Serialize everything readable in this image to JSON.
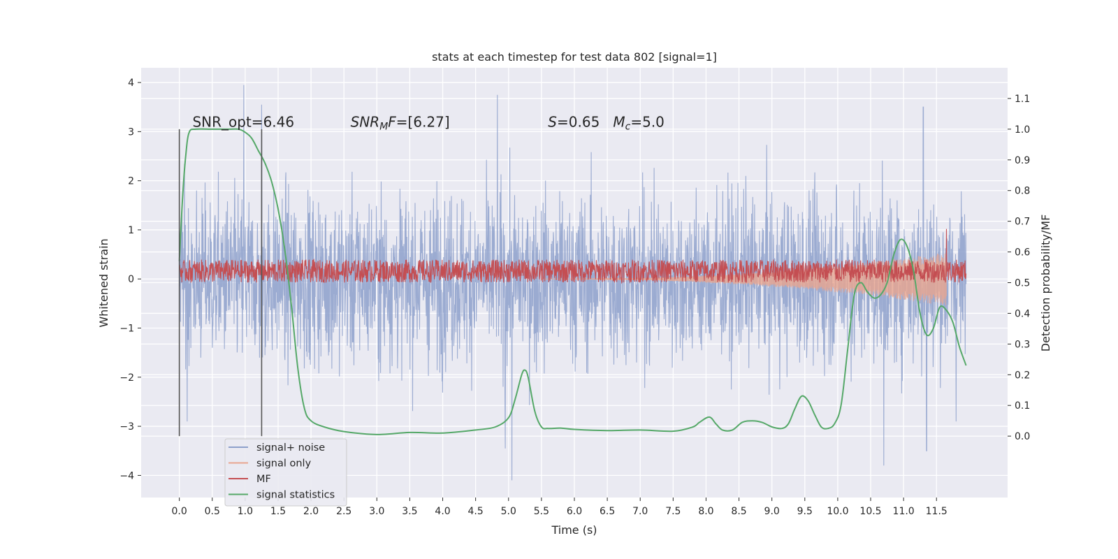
{
  "chart_data": {
    "type": "line",
    "title": "stats at each timestep for test data 802 [signal=1]",
    "xlabel": "Time (s)",
    "ylabel": "Whitened strain",
    "ylabel_right": "Detection probability/MF",
    "xlim": [
      -0.58,
      12.58
    ],
    "ylim": [
      -4.45,
      4.3
    ],
    "ylim_right": [
      -0.2,
      1.2
    ],
    "xticks": [
      0.0,
      0.5,
      1.0,
      1.5,
      2.0,
      2.5,
      3.0,
      3.5,
      4.0,
      4.5,
      5.0,
      5.5,
      6.0,
      6.5,
      7.0,
      7.5,
      8.0,
      8.5,
      9.0,
      9.5,
      10.0,
      10.5,
      11.0,
      11.5
    ],
    "xtick_labels": [
      "0.0",
      "0.5",
      "1.0",
      "1.5",
      "2.0",
      "2.5",
      "3.0",
      "3.5",
      "4.0",
      "4.5",
      "5.0",
      "5.5",
      "6.0",
      "6.5",
      "7.0",
      "7.5",
      "8.0",
      "8.5",
      "9.0",
      "9.5",
      "10.0",
      "10.5",
      "11.0",
      "11.5"
    ],
    "yticks": [
      -4,
      -3,
      -2,
      -1,
      0,
      1,
      2,
      3,
      4
    ],
    "ytick_labels": [
      "−4",
      "−3",
      "−2",
      "−1",
      "0",
      "1",
      "2",
      "3",
      "4"
    ],
    "yticks_right": [
      0.0,
      0.1,
      0.2,
      0.3,
      0.4,
      0.5,
      0.6,
      0.7,
      0.8,
      0.9,
      1.0,
      1.1
    ],
    "ytick_labels_right": [
      "0.0",
      "0.1",
      "0.2",
      "0.3",
      "0.4",
      "0.5",
      "0.6",
      "0.7",
      "0.8",
      "0.9",
      "1.0",
      "1.1"
    ],
    "grid": true,
    "legend_position": "lower-left",
    "vlines": [
      0.0,
      1.25
    ],
    "vline_range": [
      -3.2,
      3.05
    ],
    "annotations": [
      {
        "text": "SNR_opt=6.46",
        "x": 0.2,
        "y": 3.1
      },
      {
        "text": "SNR_MF=[6.27]",
        "x": 2.6,
        "y": 3.1
      },
      {
        "text": "S=0.65   M_c=5.0",
        "x": 5.6,
        "y": 3.1
      }
    ],
    "series": [
      {
        "name": "signal+ noise",
        "color": "#8da0cb",
        "axis": "left",
        "x_range": [
          0.0,
          11.95
        ],
        "envelope_mean_abs": 1.2,
        "notable_peaks": [
          {
            "x": 0.98,
            "y": 3.95
          },
          {
            "x": 1.25,
            "y": 3.55
          },
          {
            "x": 4.83,
            "y": 3.75
          },
          {
            "x": 11.3,
            "y": 3.5
          },
          {
            "x": 5.05,
            "y": -4.1
          },
          {
            "x": 10.7,
            "y": -3.8
          },
          {
            "x": 11.35,
            "y": -3.5
          },
          {
            "x": 4.95,
            "y": -3.45
          },
          {
            "x": 0.12,
            "y": -2.9
          },
          {
            "x": 11.8,
            "y": -2.9
          }
        ]
      },
      {
        "name": "signal only",
        "color": "#e8a58f",
        "axis": "left",
        "x_range": [
          5.5,
          11.65
        ],
        "envelope_start": 0.0,
        "envelope_end": 0.55
      },
      {
        "name": "MF",
        "color": "#c44e52",
        "axis": "right",
        "x_range": [
          0.0,
          11.95
        ],
        "base": 0.5,
        "spread": [
          0.5,
          0.575
        ],
        "notable_peaks": [
          {
            "x": 0.08,
            "y": 0.56
          },
          {
            "x": 6.25,
            "y": 0.565
          },
          {
            "x": 11.65,
            "y": 0.675
          }
        ]
      },
      {
        "name": "signal statistics",
        "color": "#55a868",
        "axis": "right",
        "x": [
          0.0,
          0.05,
          0.1,
          0.15,
          0.25,
          0.5,
          0.75,
          0.9,
          1.0,
          1.1,
          1.2,
          1.3,
          1.4,
          1.5,
          1.6,
          1.7,
          1.8,
          1.9,
          2.0,
          2.2,
          2.5,
          3.0,
          3.5,
          4.0,
          4.5,
          4.8,
          5.0,
          5.1,
          5.2,
          5.25,
          5.3,
          5.4,
          5.5,
          5.6,
          5.8,
          6.0,
          6.5,
          7.0,
          7.5,
          7.8,
          7.9,
          8.05,
          8.15,
          8.25,
          8.4,
          8.55,
          8.7,
          8.85,
          9.0,
          9.15,
          9.25,
          9.35,
          9.45,
          9.55,
          9.65,
          9.75,
          9.85,
          9.95,
          10.05,
          10.15,
          10.25,
          10.35,
          10.45,
          10.55,
          10.65,
          10.75,
          10.85,
          10.95,
          11.05,
          11.15,
          11.25,
          11.35,
          11.45,
          11.55,
          11.65,
          11.75,
          11.85,
          11.95
        ],
        "values": [
          0.57,
          0.78,
          0.92,
          0.99,
          1.0,
          1.0,
          1.0,
          1.0,
          0.99,
          0.97,
          0.93,
          0.89,
          0.83,
          0.74,
          0.61,
          0.43,
          0.22,
          0.09,
          0.05,
          0.03,
          0.015,
          0.005,
          0.012,
          0.01,
          0.02,
          0.03,
          0.06,
          0.12,
          0.2,
          0.215,
          0.19,
          0.08,
          0.03,
          0.025,
          0.026,
          0.022,
          0.018,
          0.02,
          0.016,
          0.03,
          0.045,
          0.062,
          0.04,
          0.02,
          0.02,
          0.045,
          0.05,
          0.045,
          0.03,
          0.025,
          0.04,
          0.09,
          0.13,
          0.115,
          0.07,
          0.03,
          0.025,
          0.04,
          0.1,
          0.28,
          0.46,
          0.5,
          0.47,
          0.45,
          0.46,
          0.5,
          0.59,
          0.64,
          0.62,
          0.54,
          0.4,
          0.33,
          0.35,
          0.42,
          0.41,
          0.37,
          0.29,
          0.23
        ]
      }
    ]
  }
}
